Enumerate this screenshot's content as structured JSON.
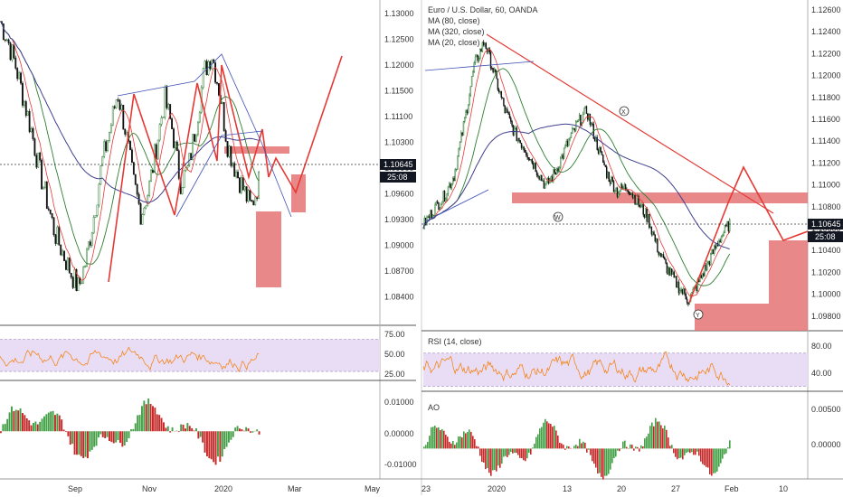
{
  "colors": {
    "candle_up": "#26a69a",
    "candle_down": "#111111",
    "ma80": "#2e7d32",
    "ma320": "#3f3f8f",
    "ma20": "#e53935",
    "drawing_red": "#e53935",
    "zone_fill": "#e57373",
    "rsi_line": "#f57c00",
    "rsi_band": "#e9dcf5",
    "ao_up": "#43a047",
    "ao_down": "#c62828",
    "price_tag": "#131722"
  },
  "chart_data": [
    {
      "type": "line",
      "panel": "left-main",
      "price_axis_ticks": [
        "1.13000",
        "1.12500",
        "1.12000",
        "1.11500",
        "1.11100",
        "1.10300",
        "1.09900",
        "1.09600",
        "1.09300",
        "1.09000",
        "1.08700",
        "1.08400"
      ],
      "time_axis_ticks": [
        "Sep",
        "Nov",
        "2020",
        "Mar",
        "May"
      ],
      "ylim": [
        1.082,
        1.132
      ],
      "last_price": "1.10645",
      "countdown": "25:08",
      "price_path": [
        1.129,
        1.126,
        1.122,
        1.117,
        1.112,
        1.106,
        1.101,
        1.096,
        1.093,
        1.09,
        1.0875,
        1.092,
        1.099,
        1.107,
        1.112,
        1.118,
        1.112,
        1.104,
        1.099,
        1.103,
        1.11,
        1.117,
        1.112,
        1.104,
        1.106,
        1.113,
        1.121,
        1.124,
        1.118,
        1.11,
        1.106,
        1.103,
        1.1,
        1.104
      ],
      "zones": [
        {
          "x0": 0.6,
          "x1": 0.78,
          "y0": 1.1095,
          "y1": 1.1088
        },
        {
          "x0": 0.78,
          "x1": 0.82,
          "y0": 1.103,
          "y1": 1.098
        },
        {
          "x0": 0.69,
          "x1": 0.75,
          "y0": 1.098,
          "y1": 1.088
        }
      ]
    },
    {
      "type": "line",
      "panel": "right-main",
      "legend": [
        "Euro / U.S. Dollar, 60, OANDA",
        "MA (80, close)",
        "MA (320, close)",
        "MA (20, close)"
      ],
      "price_axis_ticks": [
        "1.12600",
        "1.12400",
        "1.12200",
        "1.12000",
        "1.11800",
        "1.11600",
        "1.11400",
        "1.11200",
        "1.11000",
        "1.10800",
        "1.10600",
        "1.10400",
        "1.10200",
        "1.10000",
        "1.09800"
      ],
      "time_axis_ticks": [
        "23",
        "2020",
        "13",
        "20",
        "27",
        "Feb",
        "10"
      ],
      "ylim": [
        1.0965,
        1.1275
      ],
      "last_price": "1.10645",
      "countdown": "25:08",
      "wave_labels": [
        "X",
        "W",
        "Y"
      ],
      "price_path": [
        1.1063,
        1.1078,
        1.109,
        1.111,
        1.116,
        1.1215,
        1.1238,
        1.1205,
        1.1172,
        1.115,
        1.1135,
        1.1118,
        1.11,
        1.1115,
        1.1138,
        1.1158,
        1.1172,
        1.114,
        1.1112,
        1.1095,
        1.11,
        1.1085,
        1.107,
        1.104,
        1.102,
        1.1005,
        1.0992,
        1.101,
        1.103,
        1.105,
        1.1065
      ]
    },
    {
      "type": "line",
      "panel": "left-rsi",
      "ticks": [
        "75.00",
        "50.00",
        "25.00"
      ],
      "ylim": [
        20,
        85
      ]
    },
    {
      "type": "line",
      "panel": "right-rsi",
      "legend": "RSI (14, close)",
      "ticks": [
        "80.00",
        "40.00"
      ],
      "ylim": [
        25,
        95
      ]
    },
    {
      "type": "bar",
      "panel": "left-ao",
      "ticks": [
        "0.01000",
        "0.00000",
        "-0.01000"
      ],
      "ylim": [
        -0.0145,
        0.0155
      ]
    },
    {
      "type": "bar",
      "panel": "right-ao",
      "legend": "AO",
      "ticks": [
        "0.00500",
        "0.00000"
      ],
      "ylim": [
        -0.0035,
        0.0068
      ]
    }
  ]
}
